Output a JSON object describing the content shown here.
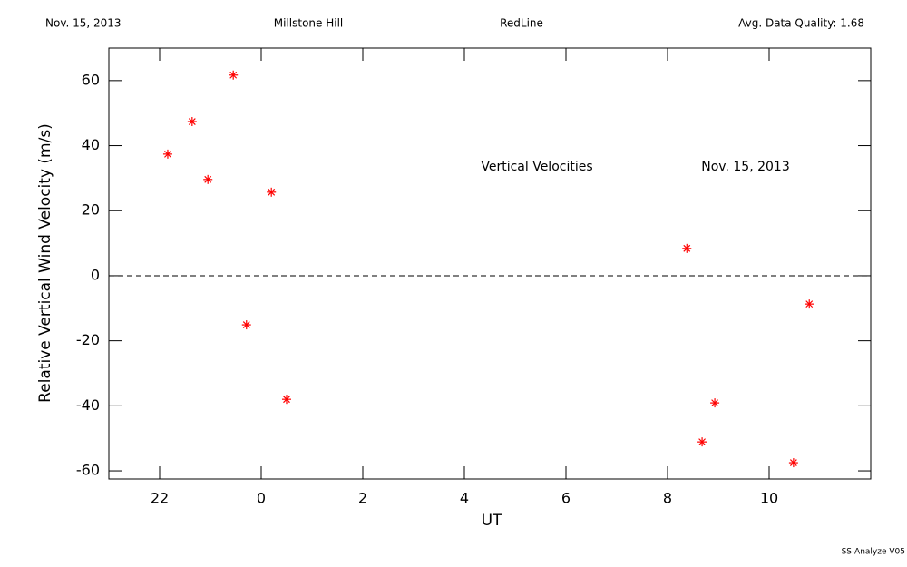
{
  "header": {
    "date": "Nov. 15, 2013",
    "site": "Millstone Hill",
    "line": "RedLine",
    "quality": "Avg. Data Quality: 1.68"
  },
  "footer": "SS-Analyze V05",
  "chart_data": {
    "type": "scatter",
    "annotations": [
      "Vertical Velocities",
      "Nov. 15, 2013"
    ],
    "xlabel": "UT",
    "ylabel": "Relative Vertical Wind Velocity (m/s)",
    "x": [
      -1.84,
      -1.36,
      -1.05,
      -0.55,
      -0.29,
      0.2,
      0.5,
      8.38,
      8.68,
      8.93,
      10.48,
      10.79
    ],
    "values": [
      37.4,
      47.4,
      29.6,
      61.7,
      -15.1,
      25.7,
      -38,
      8.4,
      -51.1,
      -39.1,
      -57.5,
      -8.7
    ],
    "color": "#ff0000",
    "marker": "asterisk",
    "xlim": [
      -3,
      12
    ],
    "xticks": [
      {
        "value": -2,
        "label": "22"
      },
      0,
      2,
      4,
      6,
      8,
      10
    ],
    "ylim": [
      -62.5,
      70
    ],
    "yticks": [
      -60,
      -40,
      -20,
      0,
      20,
      40,
      60
    ],
    "zero_line": true
  }
}
